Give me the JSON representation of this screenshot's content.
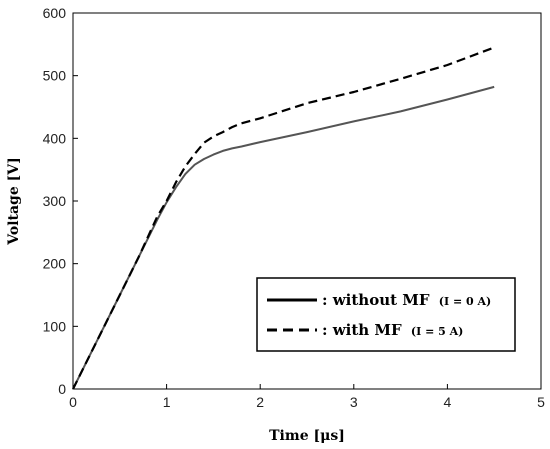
{
  "chart_data": {
    "type": "line",
    "title": "",
    "xlabel": "Time [μs]",
    "ylabel": "Voltage [V]",
    "xlim": [
      0,
      5
    ],
    "ylim": [
      0,
      600
    ],
    "xticks": [
      0,
      1,
      2,
      3,
      4,
      5
    ],
    "yticks": [
      0,
      100,
      200,
      300,
      400,
      500,
      600
    ],
    "grid": false,
    "legend_position": "bottom-right",
    "series": [
      {
        "name": ": without MF",
        "note": "(I = 0 A)",
        "style": "solid",
        "color": "#555555",
        "x": [
          0,
          0.3,
          0.5,
          0.7,
          0.9,
          1.0,
          1.1,
          1.2,
          1.3,
          1.4,
          1.5,
          1.6,
          1.7,
          1.8,
          2.0,
          2.5,
          3.0,
          3.5,
          4.0,
          4.5
        ],
        "y": [
          0,
          90,
          150,
          210,
          270,
          298,
          322,
          343,
          358,
          367,
          374,
          380,
          384,
          387,
          394,
          410,
          427,
          443,
          462,
          482
        ]
      },
      {
        "name": ": with MF",
        "note": "(I = 5 A)",
        "style": "dashed",
        "color": "#000000",
        "x": [
          0,
          0.3,
          0.5,
          0.7,
          0.9,
          1.0,
          1.1,
          1.2,
          1.3,
          1.4,
          1.5,
          1.6,
          1.7,
          1.8,
          2.0,
          2.5,
          3.0,
          3.5,
          4.0,
          4.5
        ],
        "y": [
          0,
          90,
          150,
          210,
          275,
          300,
          330,
          355,
          375,
          393,
          403,
          410,
          418,
          424,
          432,
          456,
          474,
          495,
          517,
          545
        ]
      }
    ]
  }
}
